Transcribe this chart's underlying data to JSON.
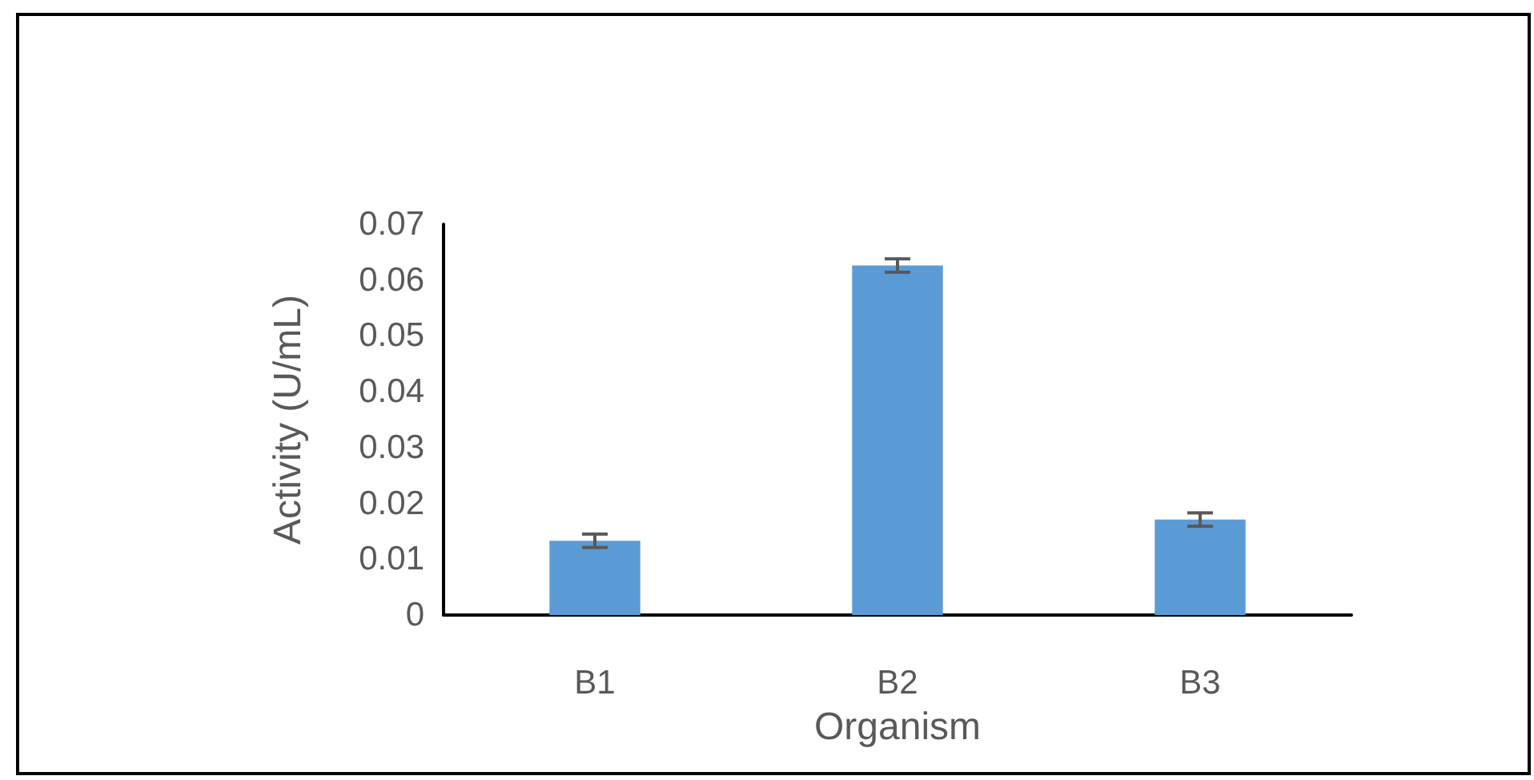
{
  "chart_data": {
    "type": "bar",
    "xlabel": "Organism",
    "ylabel": "Activity (U/mL)",
    "categories": [
      "B1",
      "B2",
      "B3"
    ],
    "values": [
      0.0133,
      0.0626,
      0.0171
    ],
    "errors": [
      0.0012,
      0.0012,
      0.0012
    ],
    "color": "#5b9bd5",
    "ylim": [
      0,
      0.07
    ],
    "yticks": [
      0,
      0.01,
      0.02,
      0.03,
      0.04,
      0.05,
      0.06,
      0.07
    ],
    "grid": false
  }
}
